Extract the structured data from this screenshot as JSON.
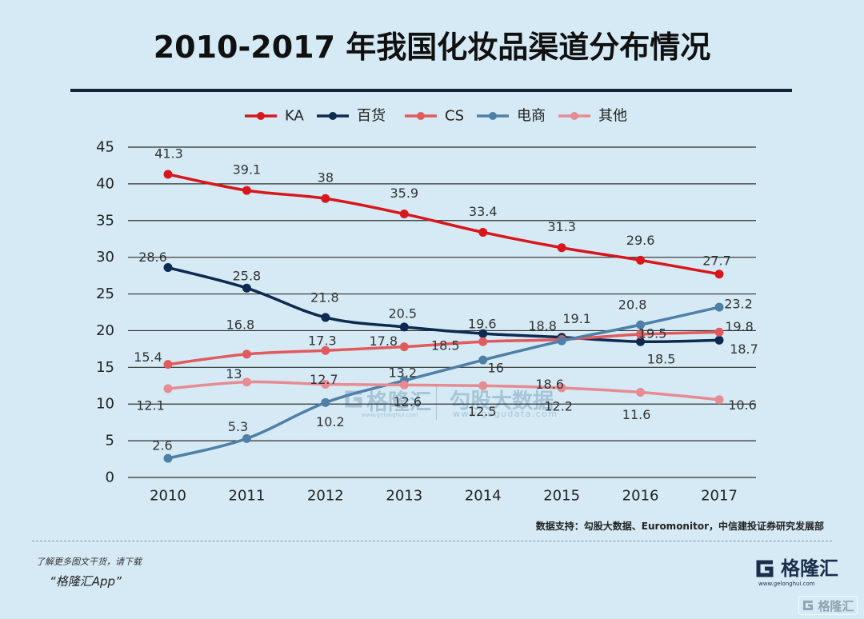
{
  "colors": {
    "background": "#d5eaf4",
    "title_rule": "#14243c",
    "grid": "#2e2e2e",
    "text": "#222222"
  },
  "footer": {
    "source": "数据支持：勾股大数据、Euromonitor，中信建投证券研究发展部",
    "promo_line1": "了解更多图文干货，请下载",
    "promo_line2": "“格隆汇App”",
    "logo_icon": "gelonghui-logo-icon",
    "logo_text": "格隆汇",
    "logo_url": "www.gelonghui.com",
    "corner_watermark_text": "格隆汇"
  },
  "watermark": {
    "brand1_icon": "gelonghui-logo-icon",
    "brand1": "格隆汇",
    "brand1_url": "www.gelonghui.com",
    "brand2": "勾股大数据",
    "brand2_url": "www.gogudata.com"
  },
  "chart_data": {
    "type": "line",
    "title": "2010-2017 年我国化妆品渠道分布情况",
    "categories": [
      "2010",
      "2011",
      "2012",
      "2013",
      "2014",
      "2015",
      "2016",
      "2017"
    ],
    "ylim": [
      0,
      45
    ],
    "yticks": [
      0,
      5,
      10,
      15,
      20,
      25,
      30,
      35,
      40,
      45
    ],
    "grid": true,
    "legend_position": "top",
    "smooth": true,
    "data_labels": true,
    "series": [
      {
        "name": "KA",
        "color": "#d7171c",
        "values": [
          41.3,
          39.1,
          38,
          35.9,
          33.4,
          31.3,
          29.6,
          27.7
        ]
      },
      {
        "name": "百货",
        "color": "#0d2a50",
        "values": [
          28.6,
          25.8,
          21.8,
          20.5,
          19.6,
          19.1,
          18.5,
          18.7
        ]
      },
      {
        "name": "CS",
        "color": "#e15a5d",
        "values": [
          15.4,
          16.8,
          17.3,
          17.8,
          18.5,
          18.8,
          19.5,
          19.8
        ]
      },
      {
        "name": "电商",
        "color": "#4e7fa7",
        "values": [
          2.6,
          5.3,
          10.2,
          13.2,
          16,
          18.6,
          20.8,
          23.2
        ]
      },
      {
        "name": "其他",
        "color": "#e68b91",
        "values": [
          12.1,
          13,
          12.7,
          12.6,
          12.5,
          12.2,
          11.6,
          10.6
        ]
      }
    ]
  }
}
